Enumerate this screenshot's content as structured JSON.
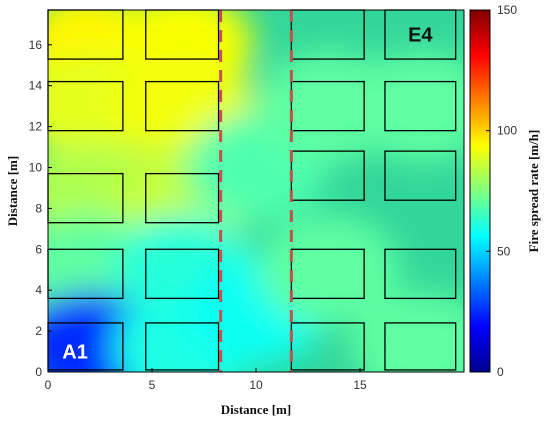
{
  "chart_data": {
    "type": "heatmap",
    "xlabel": "Distance [m]",
    "ylabel": "Distance [m]",
    "colorbar_label": "Fire spread rate [m/h]",
    "xlim": [
      0,
      20
    ],
    "ylim": [
      0,
      17.7
    ],
    "x_ticks": [
      0,
      5,
      10,
      15
    ],
    "x_tick_labels": [
      "0",
      "5",
      "10",
      "15"
    ],
    "y_ticks": [
      0,
      2,
      4,
      6,
      8,
      10,
      12,
      14,
      16
    ],
    "y_tick_labels": [
      "0",
      "2",
      "4",
      "6",
      "8",
      "10",
      "12",
      "14",
      "16"
    ],
    "colorbar_ticks": [
      0,
      50,
      100,
      150
    ],
    "colorbar_tick_labels": [
      "0",
      "50",
      "100",
      "150"
    ],
    "colorbar_range": [
      0,
      150
    ],
    "colormap": "jet",
    "approx_values": [
      {
        "x": 2,
        "y": 16,
        "rate": 95
      },
      {
        "x": 6.5,
        "y": 16,
        "rate": 93
      },
      {
        "x": 2,
        "y": 13,
        "rate": 90
      },
      {
        "x": 6.5,
        "y": 13,
        "rate": 92
      },
      {
        "x": 2,
        "y": 8.5,
        "rate": 82
      },
      {
        "x": 6.5,
        "y": 8.5,
        "rate": 85
      },
      {
        "x": 2,
        "y": 5,
        "rate": 70
      },
      {
        "x": 6.5,
        "y": 5,
        "rate": 62
      },
      {
        "x": 2,
        "y": 1.2,
        "rate": 25
      },
      {
        "x": 6.5,
        "y": 1.2,
        "rate": 60
      },
      {
        "x": 10,
        "y": 10,
        "rate": 68
      },
      {
        "x": 10,
        "y": 3,
        "rate": 58
      },
      {
        "x": 13.5,
        "y": 13,
        "rate": 70
      },
      {
        "x": 18,
        "y": 13,
        "rate": 70
      },
      {
        "x": 13.5,
        "y": 5,
        "rate": 70
      },
      {
        "x": 18,
        "y": 1.2,
        "rate": 70
      }
    ],
    "buildings": [
      {
        "x0": 0,
        "x1": 3.6,
        "y0": 15.3,
        "y1": 17.7
      },
      {
        "x0": 4.7,
        "x1": 8.2,
        "y0": 15.3,
        "y1": 17.7
      },
      {
        "x0": 0,
        "x1": 3.6,
        "y0": 11.8,
        "y1": 14.2
      },
      {
        "x0": 4.7,
        "x1": 8.2,
        "y0": 11.8,
        "y1": 14.2
      },
      {
        "x0": 0,
        "x1": 3.6,
        "y0": 7.3,
        "y1": 9.7
      },
      {
        "x0": 4.7,
        "x1": 8.2,
        "y0": 7.3,
        "y1": 9.7
      },
      {
        "x0": 0,
        "x1": 3.6,
        "y0": 3.6,
        "y1": 6.0
      },
      {
        "x0": 4.7,
        "x1": 8.2,
        "y0": 3.6,
        "y1": 6.0
      },
      {
        "x0": 0,
        "x1": 3.6,
        "y0": 0.1,
        "y1": 2.4
      },
      {
        "x0": 4.7,
        "x1": 8.2,
        "y0": 0.1,
        "y1": 2.4
      },
      {
        "x0": 11.7,
        "x1": 15.2,
        "y0": 15.3,
        "y1": 17.7
      },
      {
        "x0": 16.2,
        "x1": 19.6,
        "y0": 15.3,
        "y1": 17.7
      },
      {
        "x0": 11.7,
        "x1": 15.2,
        "y0": 11.8,
        "y1": 14.2
      },
      {
        "x0": 16.2,
        "x1": 19.6,
        "y0": 11.8,
        "y1": 14.2
      },
      {
        "x0": 11.7,
        "x1": 15.2,
        "y0": 8.4,
        "y1": 10.8
      },
      {
        "x0": 16.2,
        "x1": 19.6,
        "y0": 8.4,
        "y1": 10.8
      },
      {
        "x0": 11.7,
        "x1": 15.2,
        "y0": 3.6,
        "y1": 6.0
      },
      {
        "x0": 16.2,
        "x1": 19.6,
        "y0": 3.6,
        "y1": 6.0
      },
      {
        "x0": 11.7,
        "x1": 15.2,
        "y0": 0.1,
        "y1": 2.4
      },
      {
        "x0": 16.2,
        "x1": 19.6,
        "y0": 0.1,
        "y1": 2.4
      }
    ],
    "dashed_lines_x": [
      8.3,
      11.7
    ],
    "dashed_line_color": "#c8504a",
    "annotations": [
      {
        "text": "A1",
        "x": 1.3,
        "y": 1.0,
        "color": "#ffffff"
      },
      {
        "text": "E4",
        "x": 17.9,
        "y": 16.5,
        "color": "#111111"
      }
    ]
  }
}
